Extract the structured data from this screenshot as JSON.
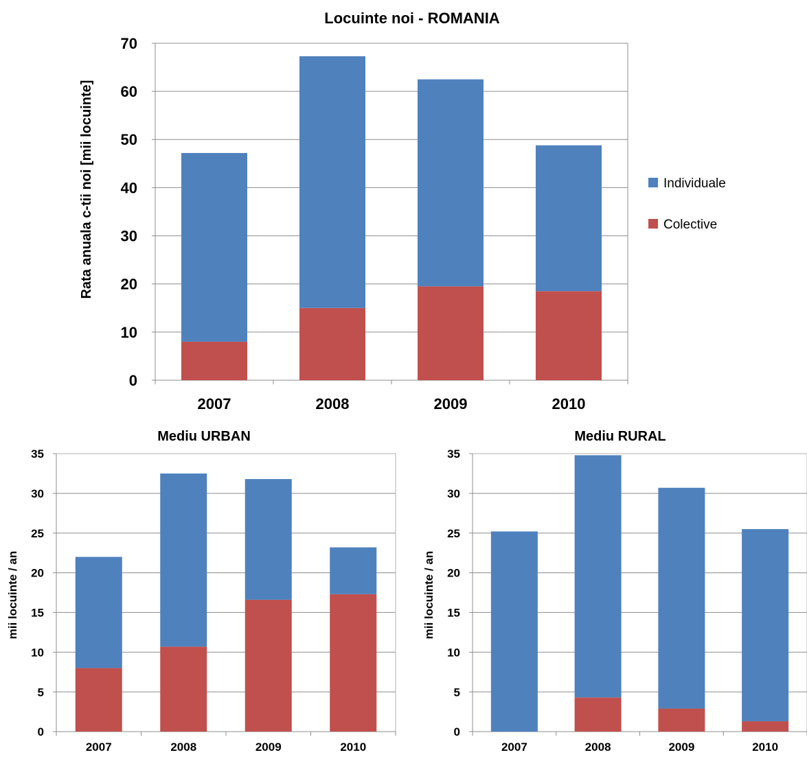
{
  "colors": {
    "individuale": "#4f81bd",
    "colective": "#c0504d"
  },
  "chart_data": [
    {
      "type": "bar",
      "stacked": true,
      "title": "Locuinte noi - ROMANIA",
      "ylabel": "Rata anuala c-tii noi [mii locuinte]",
      "xlabel": "",
      "categories": [
        "2007",
        "2008",
        "2009",
        "2010"
      ],
      "ylim": [
        0,
        70
      ],
      "yticks": [
        0,
        10,
        20,
        30,
        40,
        50,
        60,
        70
      ],
      "grid": true,
      "legend": "right",
      "series": [
        {
          "name": "Colective",
          "values": [
            8.0,
            15.0,
            19.5,
            18.5
          ]
        },
        {
          "name": "Individuale",
          "values": [
            39.2,
            52.3,
            43.0,
            30.3
          ]
        }
      ]
    },
    {
      "type": "bar",
      "stacked": true,
      "title": "Mediu URBAN",
      "ylabel": "mii locuinte / an",
      "xlabel": "",
      "categories": [
        "2007",
        "2008",
        "2009",
        "2010"
      ],
      "ylim": [
        0,
        35
      ],
      "yticks": [
        0,
        5,
        10,
        15,
        20,
        25,
        30,
        35
      ],
      "grid": true,
      "series": [
        {
          "name": "Colective",
          "values": [
            8.0,
            10.7,
            16.6,
            17.3
          ]
        },
        {
          "name": "Individuale",
          "values": [
            14.0,
            21.8,
            15.2,
            5.9
          ]
        }
      ]
    },
    {
      "type": "bar",
      "stacked": true,
      "title": "Mediu RURAL",
      "ylabel": "mii locuinte / an",
      "xlabel": "",
      "categories": [
        "2007",
        "2008",
        "2009",
        "2010"
      ],
      "ylim": [
        0,
        35
      ],
      "yticks": [
        0,
        5,
        10,
        15,
        20,
        25,
        30,
        35
      ],
      "grid": true,
      "series": [
        {
          "name": "Colective",
          "values": [
            0.0,
            4.3,
            2.9,
            1.3
          ]
        },
        {
          "name": "Individuale",
          "values": [
            25.2,
            30.5,
            27.8,
            24.2
          ]
        }
      ]
    }
  ]
}
